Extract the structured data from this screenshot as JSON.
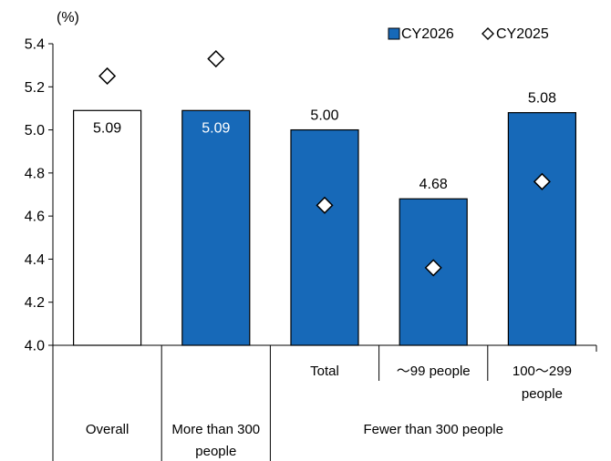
{
  "chart_data": {
    "type": "bar",
    "unit_label": "(%)",
    "ylim": [
      4.0,
      5.4
    ],
    "yticks": [
      "4.0",
      "4.2",
      "4.4",
      "4.6",
      "4.8",
      "5.0",
      "5.2",
      "5.4"
    ],
    "grid": false,
    "legend_position": "top-right",
    "categories": [
      "Overall",
      "More than 300 people",
      "Total",
      "～99 people",
      "100～299 people"
    ],
    "category_groups": [
      {
        "label": "Overall",
        "members": [
          "Overall"
        ]
      },
      {
        "label": "More than 300 people",
        "members": [
          "More than 300 people"
        ]
      },
      {
        "label": "Fewer than 300 people",
        "members": [
          "Total",
          "～99 people",
          "100～299 people"
        ]
      }
    ],
    "subcategory_labels": [
      "Total",
      "～99 people",
      "100～299 people"
    ],
    "series": [
      {
        "name": "CY2026",
        "kind": "bar",
        "color": "#1769b8",
        "values": [
          5.09,
          5.09,
          5.0,
          4.68,
          5.08
        ],
        "labels": [
          "5.09",
          "5.09",
          "5.00",
          "4.68",
          "5.08"
        ],
        "first_bar_fill": "#ffffff"
      },
      {
        "name": "CY2025",
        "kind": "marker-diamond",
        "values": [
          5.25,
          5.33,
          4.65,
          4.36,
          4.76
        ]
      }
    ]
  }
}
